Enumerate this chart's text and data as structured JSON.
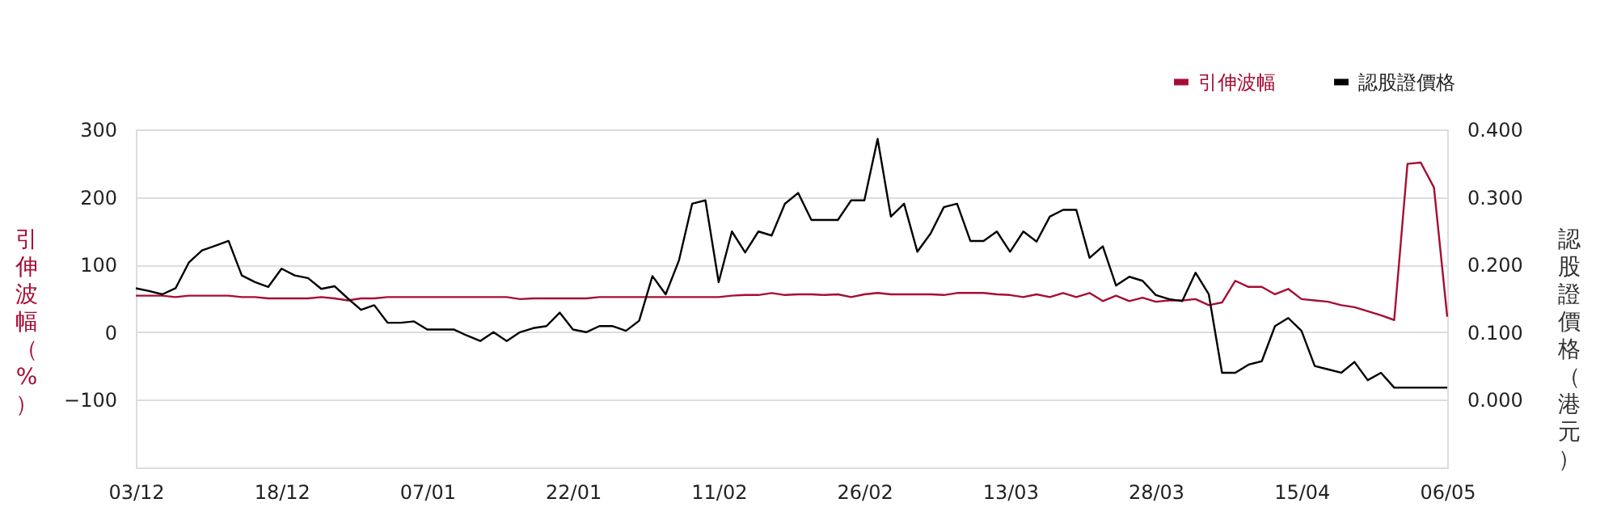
{
  "chart_data": {
    "type": "line",
    "categories": [
      "03/12",
      null,
      null,
      null,
      null,
      null,
      null,
      null,
      null,
      null,
      null,
      "18/12",
      null,
      null,
      null,
      null,
      null,
      null,
      null,
      null,
      null,
      null,
      "07/01",
      null,
      null,
      null,
      null,
      null,
      null,
      null,
      null,
      null,
      null,
      "22/01",
      null,
      null,
      null,
      null,
      null,
      null,
      null,
      null,
      null,
      null,
      "11/02",
      null,
      null,
      null,
      null,
      null,
      null,
      null,
      null,
      null,
      null,
      "26/02",
      null,
      null,
      null,
      null,
      null,
      null,
      null,
      null,
      null,
      null,
      "13/03",
      null,
      null,
      null,
      null,
      null,
      null,
      null,
      null,
      null,
      null,
      "28/03",
      null,
      null,
      null,
      null,
      null,
      null,
      null,
      null,
      null,
      null,
      "15/04",
      null,
      null,
      null,
      null,
      null,
      null,
      null,
      null,
      null,
      null,
      "06/05"
    ],
    "series": [
      {
        "name": "引伸波幅",
        "color": "#a50e34",
        "values": [
          54,
          54,
          54,
          52,
          54,
          54,
          54,
          54,
          52,
          52,
          50,
          50,
          50,
          50,
          52,
          50,
          47,
          50,
          50,
          52,
          52,
          52,
          52,
          52,
          52,
          52,
          52,
          52,
          52,
          49,
          50,
          50,
          50,
          50,
          50,
          52,
          52,
          52,
          52,
          52,
          52,
          52,
          52,
          52,
          52,
          54,
          55,
          55,
          58,
          55,
          56,
          56,
          55,
          56,
          52,
          56,
          58,
          56,
          56,
          56,
          56,
          55,
          58,
          58,
          58,
          56,
          55,
          52,
          56,
          52,
          58,
          52,
          58,
          46,
          54,
          46,
          51,
          45,
          47,
          47,
          49,
          40,
          44,
          76,
          67,
          67,
          56,
          64,
          49,
          47,
          45,
          40,
          37,
          31,
          25,
          18,
          249,
          251,
          214,
          23
        ]
      },
      {
        "name": "認股證價格",
        "color": "#000000",
        "axis": "y2",
        "values": [
          0.165,
          0.161,
          0.156,
          0.165,
          0.203,
          0.221,
          0.228,
          0.235,
          0.184,
          0.174,
          0.167,
          0.194,
          0.184,
          0.18,
          0.164,
          0.168,
          0.15,
          0.133,
          0.14,
          0.114,
          0.114,
          0.116,
          0.104,
          0.104,
          0.104,
          0.095,
          0.087,
          0.1,
          0.087,
          0.1,
          0.106,
          0.109,
          0.129,
          0.104,
          0.1,
          0.109,
          0.109,
          0.102,
          0.117,
          0.183,
          0.156,
          0.206,
          0.29,
          0.295,
          0.174,
          0.249,
          0.218,
          0.249,
          0.243,
          0.29,
          0.306,
          0.266,
          0.266,
          0.266,
          0.295,
          0.295,
          0.386,
          0.271,
          0.29,
          0.219,
          0.246,
          0.285,
          0.29,
          0.235,
          0.235,
          0.249,
          0.219,
          0.249,
          0.234,
          0.271,
          0.281,
          0.281,
          0.21,
          0.227,
          0.169,
          0.182,
          0.176,
          0.155,
          0.149,
          0.146,
          0.188,
          0.156,
          0.04,
          0.04,
          0.052,
          0.057,
          0.109,
          0.121,
          0.102,
          0.05,
          0.045,
          0.04,
          0.056,
          0.029,
          0.04,
          0.018,
          0.018,
          0.018,
          0.018,
          0.018
        ]
      }
    ],
    "ylabel": "引伸波幅（%）",
    "y2label": "認股證價格（港元）",
    "ylim": [
      -200,
      300
    ],
    "yticks": [
      -100,
      0,
      100,
      200,
      300
    ],
    "y2lim": [
      -0.1,
      0.4
    ],
    "y2ticks": [
      {
        "value": 0,
        "label": "0.000"
      },
      {
        "value": 0.1,
        "label": "0.100"
      },
      {
        "value": 0.2,
        "label": "0.200"
      },
      {
        "value": 0.3,
        "label": "0.300"
      },
      {
        "value": 0.4,
        "label": "0.400"
      }
    ],
    "grid": "y",
    "legend": "top right",
    "marker": "none",
    "line_style": "solid"
  }
}
